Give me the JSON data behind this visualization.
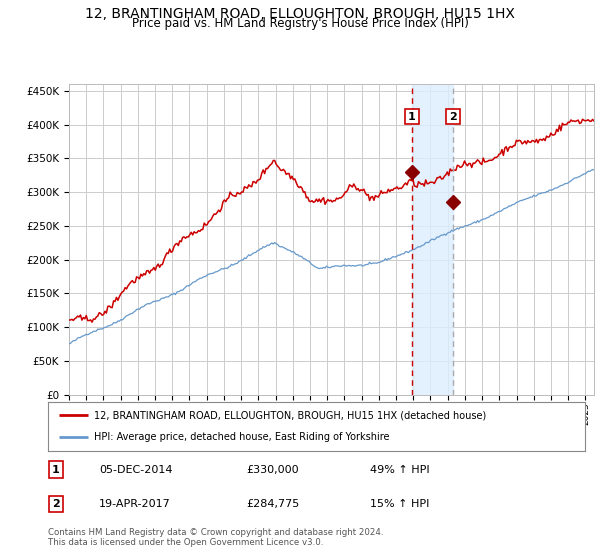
{
  "title": "12, BRANTINGHAM ROAD, ELLOUGHTON, BROUGH, HU15 1HX",
  "subtitle": "Price paid vs. HM Land Registry's House Price Index (HPI)",
  "legend_label_red": "12, BRANTINGHAM ROAD, ELLOUGHTON, BROUGH, HU15 1HX (detached house)",
  "legend_label_blue": "HPI: Average price, detached house, East Riding of Yorkshire",
  "table_rows": [
    {
      "num": "1",
      "date": "05-DEC-2014",
      "price": "£330,000",
      "hpi": "49% ↑ HPI"
    },
    {
      "num": "2",
      "date": "19-APR-2017",
      "price": "£284,775",
      "hpi": "15% ↑ HPI"
    }
  ],
  "footer": "Contains HM Land Registry data © Crown copyright and database right 2024.\nThis data is licensed under the Open Government Licence v3.0.",
  "vline1_x": 2014.92,
  "vline2_x": 2017.3,
  "dot1": [
    2014.92,
    330000
  ],
  "dot2": [
    2017.3,
    284775
  ],
  "ylim": [
    0,
    460000
  ],
  "xlim_start": 1995.0,
  "xlim_end": 2025.5,
  "red_color": "#cc0000",
  "blue_color": "#6699cc",
  "dot_color": "#880000",
  "shade_color": "#ddeeff",
  "vline1_color": "#cc0000",
  "vline2_color": "#aaaaaa",
  "grid_color": "#cccccc",
  "bg_color": "#ffffff",
  "title_fontsize": 10,
  "subtitle_fontsize": 8.5
}
